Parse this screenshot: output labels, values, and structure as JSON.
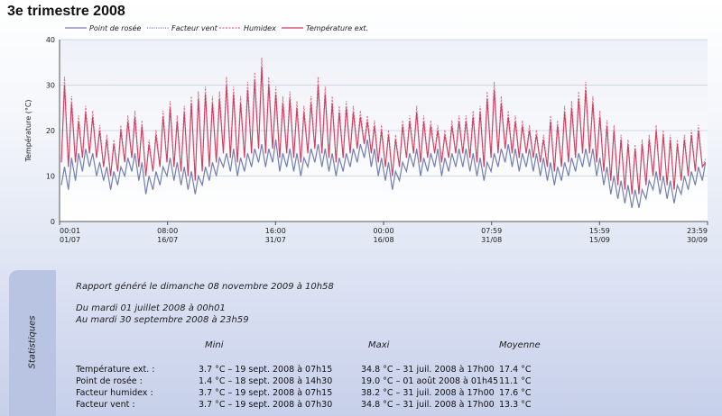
{
  "page": {
    "title": "3e trimestre 2008"
  },
  "chart_data": {
    "type": "line",
    "title": "",
    "ylabel": "Température (°C)",
    "ylim": [
      0,
      40
    ],
    "yticks": [
      0,
      10,
      20,
      30,
      40
    ],
    "grid": true,
    "legend": "top",
    "x_range_days": [
      0,
      91.99
    ],
    "x_ticks": [
      {
        "pos": 0,
        "time": "00:01",
        "date": "01/07"
      },
      {
        "pos": 15.33,
        "time": "08:00",
        "date": "16/07"
      },
      {
        "pos": 30.66,
        "time": "16:00",
        "date": "31/07"
      },
      {
        "pos": 46.0,
        "time": "00:00",
        "date": "16/08"
      },
      {
        "pos": 61.33,
        "time": "07:59",
        "date": "31/08"
      },
      {
        "pos": 76.66,
        "time": "15:59",
        "date": "15/09"
      },
      {
        "pos": 91.99,
        "time": "23:59",
        "date": "30/09"
      }
    ],
    "series": [
      {
        "name": "Point de rosée",
        "color": "#7480b4",
        "style": "solid",
        "daily_min": [
          8,
          7,
          9,
          11,
          12,
          10,
          9,
          7,
          8,
          10,
          11,
          9,
          6,
          7,
          8,
          10,
          9,
          8,
          7,
          6,
          8,
          9,
          10,
          12,
          11,
          10,
          11,
          12,
          13,
          12,
          13,
          11,
          12,
          11,
          10,
          12,
          13,
          12,
          11,
          10,
          11,
          12,
          13,
          14,
          12,
          10,
          9,
          7,
          9,
          11,
          12,
          10,
          11,
          12,
          10,
          11,
          12,
          12,
          11,
          10,
          9,
          11,
          12,
          13,
          12,
          11,
          12,
          11,
          10,
          9,
          8,
          9,
          10,
          11,
          12,
          12,
          10,
          8,
          6,
          5,
          4,
          3,
          3,
          5,
          7,
          6,
          5,
          4,
          6,
          7,
          8,
          9
        ],
        "daily_max": [
          12,
          14,
          15,
          16,
          15,
          13,
          12,
          11,
          12,
          14,
          15,
          13,
          10,
          11,
          12,
          14,
          13,
          12,
          11,
          10,
          12,
          13,
          14,
          15,
          16,
          14,
          15,
          16,
          17,
          16,
          18,
          15,
          16,
          15,
          14,
          16,
          17,
          16,
          15,
          14,
          15,
          16,
          17,
          18,
          16,
          14,
          13,
          11,
          13,
          15,
          16,
          14,
          15,
          16,
          14,
          15,
          16,
          16,
          15,
          14,
          13,
          15,
          16,
          17,
          16,
          15,
          16,
          15,
          14,
          13,
          12,
          13,
          14,
          15,
          16,
          16,
          14,
          12,
          10,
          9,
          8,
          7,
          7,
          9,
          11,
          10,
          9,
          8,
          10,
          11,
          12,
          13
        ]
      },
      {
        "name": "Température ext.",
        "color": "#cf4060",
        "style": "solid",
        "daily_min": [
          13,
          12,
          13,
          14,
          15,
          14,
          12,
          10,
          11,
          13,
          14,
          12,
          10,
          11,
          12,
          13,
          12,
          11,
          10,
          9,
          11,
          12,
          13,
          15,
          14,
          13,
          14,
          15,
          16,
          15,
          16,
          14,
          15,
          14,
          13,
          15,
          16,
          15,
          14,
          13,
          14,
          15,
          16,
          17,
          15,
          13,
          12,
          10,
          12,
          14,
          15,
          13,
          14,
          15,
          13,
          14,
          15,
          15,
          14,
          13,
          12,
          14,
          15,
          16,
          15,
          14,
          15,
          14,
          13,
          12,
          11,
          12,
          13,
          14,
          15,
          15,
          13,
          11,
          9,
          8,
          7,
          6,
          6,
          8,
          10,
          9,
          8,
          7,
          9,
          10,
          11,
          12
        ],
        "daily_max": [
          30,
          26,
          22,
          24,
          23,
          20,
          18,
          17,
          20,
          22,
          23,
          21,
          17,
          19,
          23,
          25,
          22,
          24,
          26,
          27,
          28,
          26,
          27,
          30,
          28,
          26,
          29,
          31,
          34,
          30,
          28,
          26,
          27,
          25,
          24,
          26,
          30,
          28,
          26,
          24,
          25,
          24,
          23,
          22,
          21,
          20,
          19,
          18,
          21,
          22,
          24,
          22,
          21,
          20,
          19,
          21,
          22,
          22,
          23,
          24,
          27,
          29,
          26,
          23,
          22,
          21,
          20,
          19,
          18,
          22,
          21,
          24,
          25,
          27,
          29,
          26,
          23,
          21,
          20,
          18,
          17,
          16,
          17,
          18,
          20,
          19,
          18,
          17,
          18,
          19,
          20,
          13
        ]
      },
      {
        "name": "Humidex",
        "color": "#dc6e84",
        "style": "dashed"
      },
      {
        "name": "Facteur vent",
        "color": "#6f76a8",
        "style": "dotted"
      }
    ]
  },
  "report": {
    "generated": "Rapport généré le dimanche 08 novembre 2009 à 10h58",
    "from": "Du mardi 01 juillet 2008 à 00h01",
    "to": "Au mardi 30 septembre 2008 à 23h59"
  },
  "stats": {
    "section_label": "Statistiques",
    "headers": {
      "min": "Mini",
      "max": "Maxi",
      "avg": "Moyenne"
    },
    "rows": [
      {
        "label": "Température ext. :",
        "min": "3.7 °C – 19 sept. 2008 à 07h15",
        "max": "34.8 °C – 31 juil. 2008 à 17h00",
        "avg": "17.4 °C"
      },
      {
        "label": "Point de rosée :",
        "min": "1.4 °C – 18 sept. 2008 à 14h30",
        "max": "19.0 °C – 01 août 2008 à 01h45",
        "avg": "11.1 °C"
      },
      {
        "label": "Facteur humidex :",
        "min": "3.7 °C – 19 sept. 2008 à 07h15",
        "max": "38.2 °C – 31 juil. 2008 à 17h00",
        "avg": "17.6 °C"
      },
      {
        "label": "Facteur vent :",
        "min": "3.7 °C – 19 sept. 2008 à 07h30",
        "max": "34.8 °C – 31 juil. 2008 à 17h00",
        "avg": "13.3 °C"
      }
    ]
  }
}
